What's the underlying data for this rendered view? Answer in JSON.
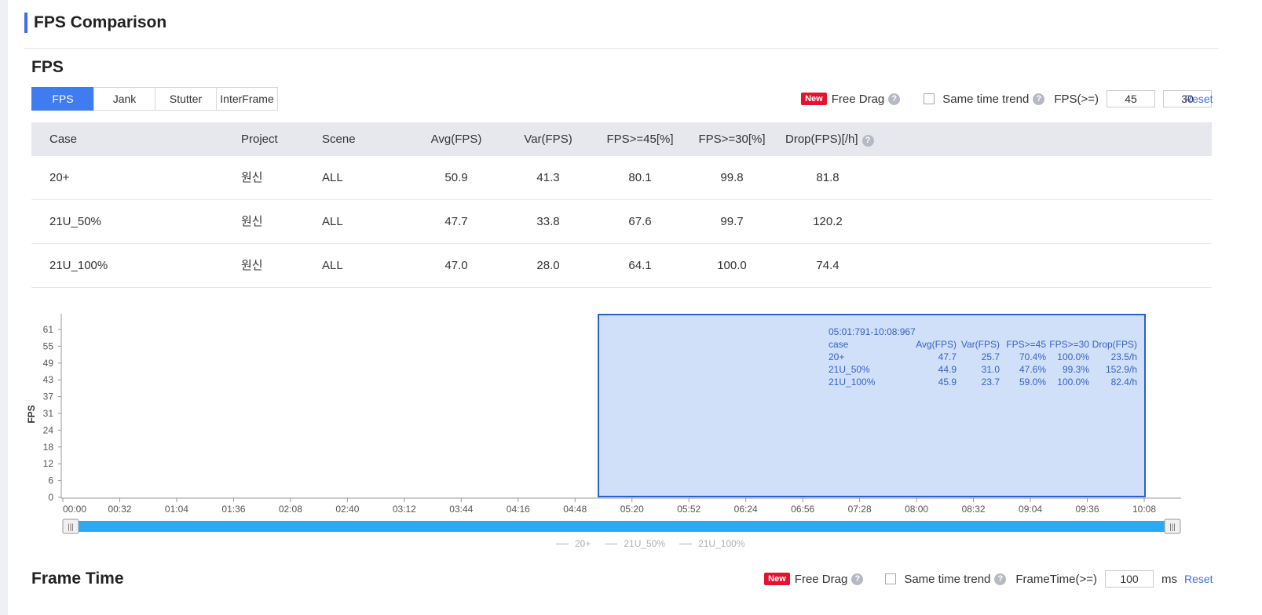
{
  "header": {
    "title": "FPS Comparison"
  },
  "fps_section": {
    "title": "FPS",
    "tabs": [
      "FPS",
      "Jank",
      "Stutter",
      "InterFrame"
    ],
    "active_tab": "FPS",
    "toolbar": {
      "new_badge": "New",
      "free_drag": "Free Drag",
      "same_time_trend": "Same time trend",
      "threshold_label": "FPS(>=)",
      "threshold_1": "45",
      "threshold_2": "30",
      "reset": "Reset"
    }
  },
  "table": {
    "headers": [
      "Case",
      "Project",
      "Scene",
      "Avg(FPS)",
      "Var(FPS)",
      "FPS>=45[%]",
      "FPS>=30[%]",
      "Drop(FPS)[/h]"
    ],
    "rows": [
      [
        "20+",
        "원신",
        "ALL",
        "50.9",
        "41.3",
        "80.1",
        "99.8",
        "81.8"
      ],
      [
        "21U_50%",
        "원신",
        "ALL",
        "47.7",
        "33.8",
        "67.6",
        "99.7",
        "120.2"
      ],
      [
        "21U_100%",
        "원신",
        "ALL",
        "47.0",
        "28.0",
        "64.1",
        "100.0",
        "74.4"
      ]
    ]
  },
  "chart_data": {
    "type": "line",
    "ylabel": "FPS",
    "y_ticks": [
      "0",
      "6",
      "12",
      "18",
      "24",
      "31",
      "37",
      "43",
      "49",
      "55",
      "61"
    ],
    "x_ticks": [
      "00:00",
      "00:32",
      "01:04",
      "01:36",
      "02:08",
      "02:40",
      "03:12",
      "03:44",
      "04:16",
      "04:48",
      "05:20",
      "05:52",
      "06:24",
      "06:56",
      "07:28",
      "08:00",
      "08:32",
      "09:04",
      "09:36",
      "10:08"
    ],
    "series": [
      {
        "name": "20+",
        "values": []
      },
      {
        "name": "21U_50%",
        "values": []
      },
      {
        "name": "21U_100%",
        "values": []
      }
    ],
    "selection": {
      "range": "05:01:791-10:08:967",
      "columns": [
        "case",
        "Avg(FPS)",
        "Var(FPS)",
        "FPS>=45",
        "FPS>=30",
        "Drop(FPS)"
      ],
      "rows": [
        [
          "20+",
          "47.7",
          "25.7",
          "70.4%",
          "100.0%",
          "23.5/h"
        ],
        [
          "21U_50%",
          "44.9",
          "31.0",
          "47.6%",
          "99.3%",
          "152.9/h"
        ],
        [
          "21U_100%",
          "45.9",
          "23.7",
          "59.0%",
          "100.0%",
          "82.4/h"
        ]
      ]
    },
    "colors": {
      "selection_fill": "#d0e0f8",
      "selection_border": "#2a62c9",
      "slider": "#2aaaf0"
    }
  },
  "frame_time_section": {
    "title": "Frame Time",
    "toolbar": {
      "new_badge": "New",
      "free_drag": "Free Drag",
      "same_time_trend": "Same time trend",
      "threshold_label": "FrameTime(>=)",
      "threshold_value": "100",
      "unit": "ms",
      "reset": "Reset"
    }
  }
}
